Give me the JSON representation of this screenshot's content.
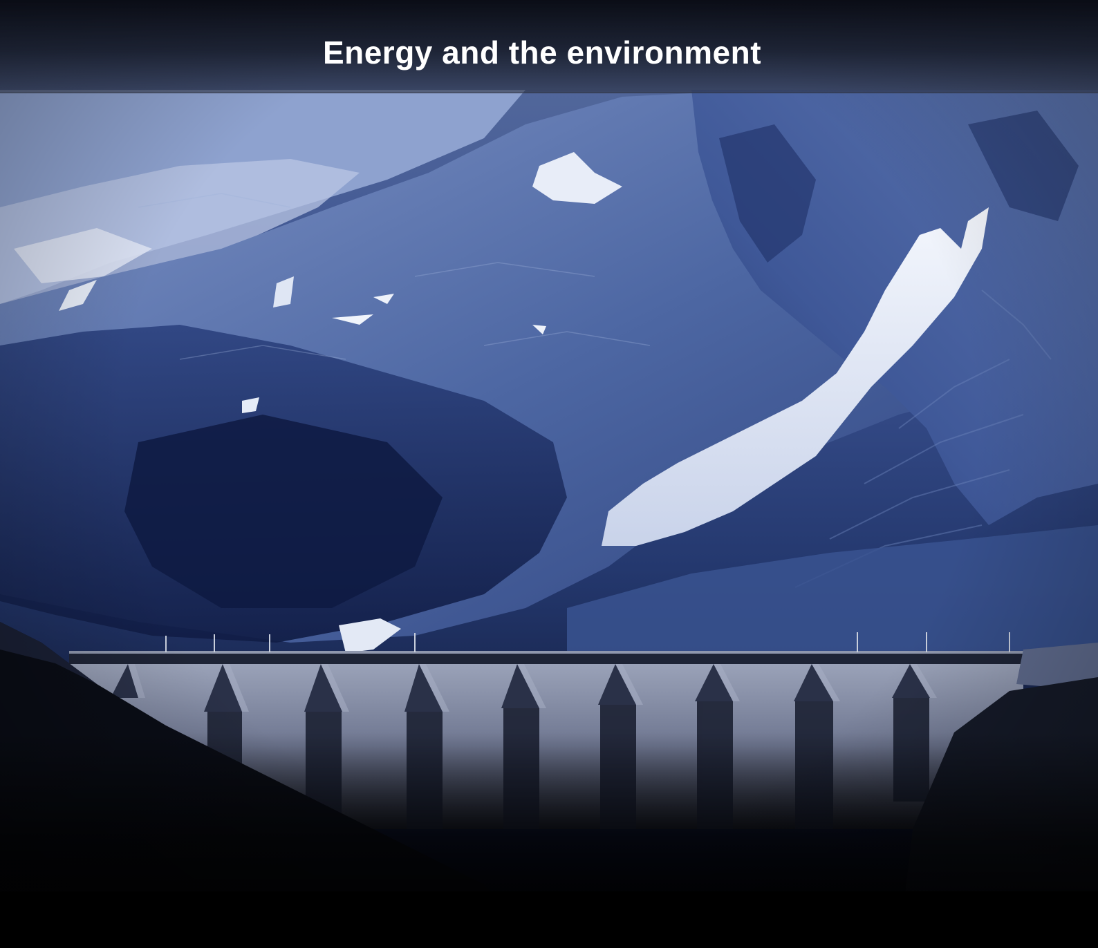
{
  "header": {
    "title": "Energy and the environment"
  },
  "scene": {
    "subject": "mountain-dam-landscape",
    "palette": {
      "sky_shadow": "#0b1430",
      "slope_mid": "#3b5590",
      "slope_light": "#7d93c4",
      "snow": "#e9eef8",
      "dam_concrete": "#8d95ad",
      "dam_shadow": "#2a3148",
      "foreground": "#050608"
    }
  }
}
